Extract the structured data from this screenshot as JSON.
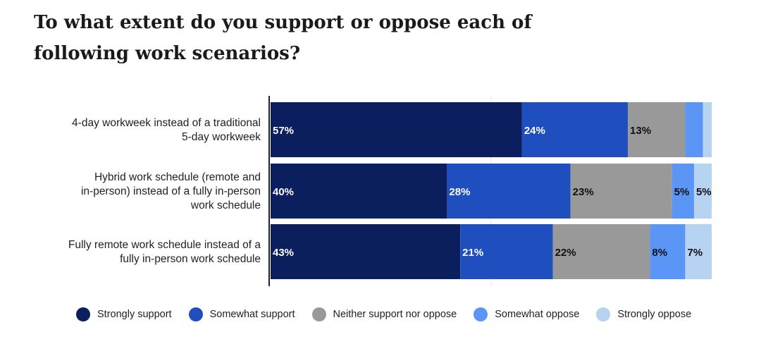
{
  "title": "To what extent do you support or oppose each of following work scenarios?",
  "chart_data": {
    "type": "bar",
    "orientation": "horizontal",
    "stacked": true,
    "title": "To what extent do you support or oppose each of following work scenarios?",
    "categories": [
      [
        "4-day workweek instead of a traditional",
        "5-day workweek"
      ],
      [
        "Hybrid work schedule (remote and",
        "in-person) instead of a fully in-person",
        "work schedule"
      ],
      [
        "Fully remote work schedule instead of a",
        "fully in-person work schedule"
      ]
    ],
    "series": [
      {
        "name": "Strongly support",
        "color": "#0b1f5e",
        "values": [
          57,
          40,
          43
        ],
        "labels": [
          "57%",
          "40%",
          "43%"
        ],
        "label_color": "#ffffff"
      },
      {
        "name": "Somewhat support",
        "color": "#1f4fbf",
        "values": [
          24,
          28,
          21
        ],
        "labels": [
          "24%",
          "28%",
          "21%"
        ],
        "label_color": "#ffffff"
      },
      {
        "name": "Neither support nor oppose",
        "color": "#999999",
        "values": [
          13,
          23,
          22
        ],
        "labels": [
          "13%",
          "23%",
          "22%"
        ],
        "label_color": "#111111"
      },
      {
        "name": "Somewhat oppose",
        "color": "#5b95f5",
        "values": [
          4,
          5,
          8
        ],
        "labels": [
          "",
          "5%",
          "8%"
        ],
        "label_color": "#111111"
      },
      {
        "name": "Strongly oppose",
        "color": "#b6d3f2",
        "values": [
          3,
          5,
          7
        ],
        "labels": [
          "",
          "5%",
          "7%"
        ],
        "label_color": "#111111"
      }
    ],
    "xlim": [
      0,
      100
    ],
    "legend_position": "bottom"
  }
}
